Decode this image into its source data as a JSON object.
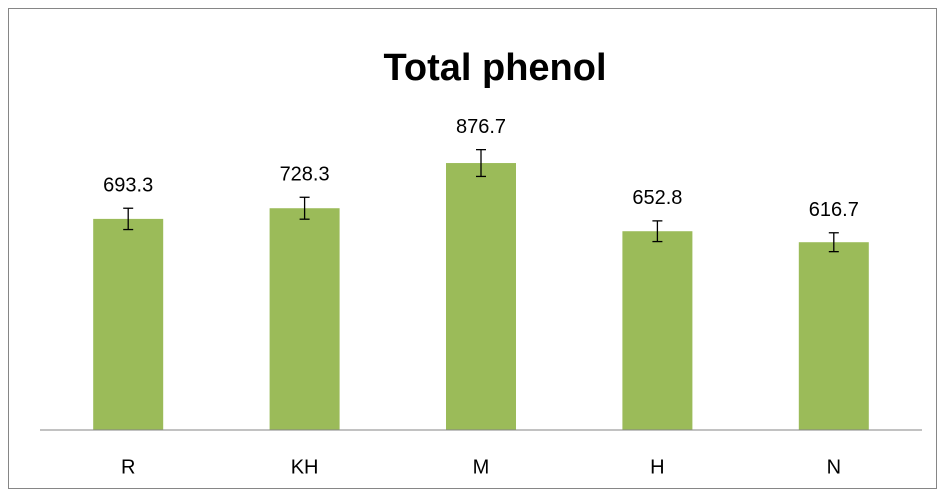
{
  "chart_data": {
    "type": "bar",
    "title": "Total phenol",
    "categories": [
      "R",
      "KH",
      "M",
      "H",
      "N"
    ],
    "values": [
      693.3,
      728.3,
      876.7,
      652.8,
      616.7
    ],
    "errors": [
      35,
      36,
      44,
      34,
      31
    ],
    "color": "#9bbb59",
    "ylim": [
      0,
      1000
    ]
  }
}
